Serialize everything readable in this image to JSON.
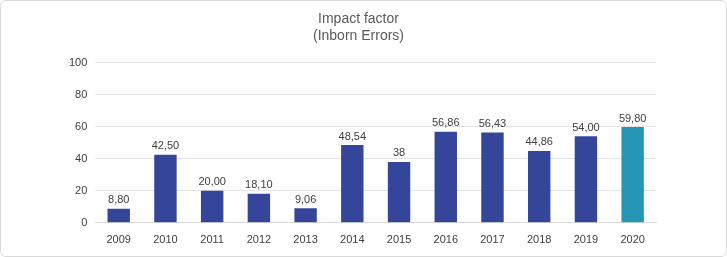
{
  "chart_data": {
    "type": "bar",
    "title": "Impact factor\n(Inborn Errors)",
    "categories": [
      "2009",
      "2010",
      "2011",
      "2012",
      "2013",
      "2014",
      "2015",
      "2016",
      "2017",
      "2018",
      "2019",
      "2020"
    ],
    "values": [
      8.8,
      42.5,
      20.0,
      18.1,
      9.06,
      48.54,
      38,
      56.86,
      56.43,
      44.86,
      54.0,
      59.8
    ],
    "value_labels": [
      "8,80",
      "42,50",
      "20,00",
      "18,10",
      "9,06",
      "48,54",
      "38",
      "56,86",
      "56,43",
      "44,86",
      "54,00",
      "59,80"
    ],
    "colors": [
      "#35469a",
      "#35469a",
      "#35469a",
      "#35469a",
      "#35469a",
      "#35469a",
      "#35469a",
      "#35469a",
      "#35469a",
      "#35469a",
      "#35469a",
      "#2596b4"
    ],
    "ylim": [
      0,
      100
    ],
    "yticks": [
      0,
      20,
      40,
      60,
      80,
      100
    ],
    "grid": true,
    "data_labels": true
  }
}
